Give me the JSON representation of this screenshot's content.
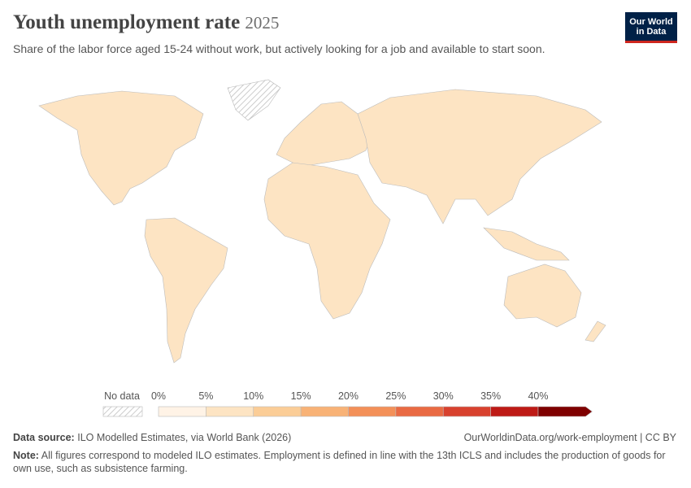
{
  "chart_data": {
    "type": "choropleth",
    "title": "Youth unemployment rate",
    "title_year": "2025",
    "subtitle": "Share of the labor force aged 15-24 without work, but actively looking for a job and available to start soon.",
    "logo": [
      "Our World",
      "in Data"
    ],
    "legend": {
      "no_data_label": "No data",
      "ticks": [
        {
          "value": 0,
          "label": "0%"
        },
        {
          "value": 5,
          "label": "5%"
        },
        {
          "value": 10,
          "label": "10%"
        },
        {
          "value": 15,
          "label": "15%"
        },
        {
          "value": 20,
          "label": "20%"
        },
        {
          "value": 25,
          "label": "25%"
        },
        {
          "value": 30,
          "label": "30%"
        },
        {
          "value": 35,
          "label": "35%"
        },
        {
          "value": 40,
          "label": "40%"
        }
      ],
      "colors": [
        "#fff3e6",
        "#fde4c3",
        "#fbcd97",
        "#f8b276",
        "#f39058",
        "#e96a43",
        "#d8412e",
        "#be1a16",
        "#7f0000"
      ]
    },
    "source_label": "Data source:",
    "source": "ILO Modelled Estimates, via World Bank (2026)",
    "url": "OurWorldinData.org/work-employment | CC BY",
    "note_label": "Note:",
    "note": "All figures correspond to modeled ILO estimates. Employment is defined in line with the 13th ICLS and includes the production of goods for own use, such as subsistence farming."
  }
}
